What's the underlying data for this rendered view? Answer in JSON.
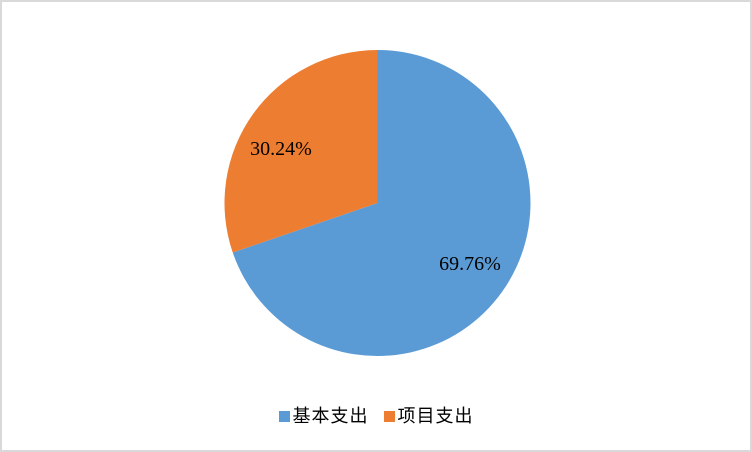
{
  "chart_data": {
    "type": "pie",
    "title": "",
    "start_angle_deg": 0,
    "direction": "clockwise",
    "legend_position": "bottom",
    "label_color": "#000000",
    "background_color": "#ffffff",
    "border_color": "#d9d9d9",
    "slices": [
      {
        "label": "基本支出",
        "value": 69.76,
        "display_label": "69.76%",
        "color": "#5B9BD5"
      },
      {
        "label": "项目支出",
        "value": 30.24,
        "display_label": "30.24%",
        "color": "#ED7D31"
      }
    ]
  }
}
